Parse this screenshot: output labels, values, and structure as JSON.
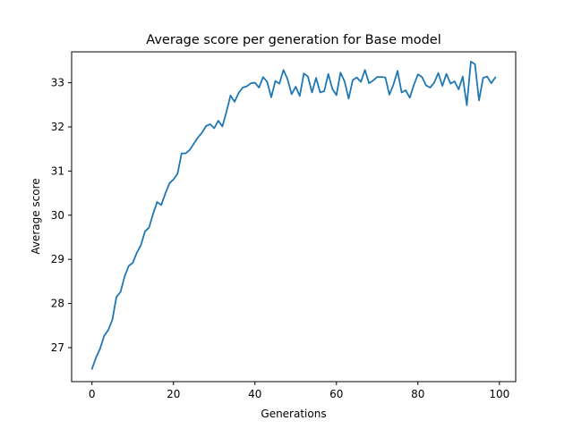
{
  "chart_data": {
    "type": "line",
    "title": "Average score per generation for Base model",
    "xlabel": "Generations",
    "ylabel": "Average score",
    "xlim": [
      -5,
      104
    ],
    "ylim": [
      26.23,
      33.7
    ],
    "xticks": [
      0,
      20,
      40,
      60,
      80,
      100
    ],
    "yticks": [
      27,
      28,
      29,
      30,
      31,
      32,
      33
    ],
    "grid": false,
    "line_color": "#1f77b4",
    "series": [
      {
        "x": [
          0,
          1,
          2,
          3,
          4,
          5,
          6,
          7,
          8,
          9,
          10,
          11,
          12,
          13,
          14,
          15,
          16,
          17,
          18,
          19,
          20,
          21,
          22,
          23,
          24,
          25,
          26,
          27,
          28,
          29,
          30,
          31,
          32,
          33,
          34,
          35,
          36,
          37,
          38,
          39,
          40,
          41,
          42,
          43,
          44,
          45,
          46,
          47,
          48,
          49,
          50,
          51,
          52,
          53,
          54,
          55,
          56,
          57,
          58,
          59,
          60,
          61,
          62,
          63,
          64,
          65,
          66,
          67,
          68,
          69,
          70,
          71,
          72,
          73,
          74,
          75,
          76,
          77,
          78,
          79,
          80,
          81,
          82,
          83,
          84,
          85,
          86,
          87,
          88,
          89,
          90,
          91,
          92,
          93,
          94,
          95,
          96,
          97,
          98,
          99
        ],
        "values": [
          26.52,
          26.78,
          26.98,
          27.27,
          27.4,
          27.63,
          28.15,
          28.26,
          28.61,
          28.85,
          28.92,
          29.15,
          29.32,
          29.63,
          29.72,
          30.03,
          30.3,
          30.23,
          30.49,
          30.72,
          30.81,
          30.94,
          31.4,
          31.4,
          31.48,
          31.62,
          31.76,
          31.87,
          32.02,
          32.06,
          31.97,
          32.14,
          32.01,
          32.34,
          32.71,
          32.57,
          32.77,
          32.89,
          32.92,
          32.99,
          33.0,
          32.89,
          33.13,
          33.02,
          32.67,
          33.04,
          32.98,
          33.29,
          33.08,
          32.74,
          32.91,
          32.7,
          33.21,
          33.14,
          32.78,
          33.11,
          32.78,
          32.81,
          33.2,
          32.86,
          32.72,
          33.23,
          33.03,
          32.64,
          33.06,
          33.12,
          33.02,
          33.29,
          32.99,
          33.05,
          33.13,
          33.13,
          33.12,
          32.73,
          32.96,
          33.27,
          32.78,
          32.83,
          32.66,
          32.95,
          33.19,
          33.13,
          32.94,
          32.89,
          33.0,
          33.22,
          32.93,
          33.2,
          32.98,
          33.03,
          32.85,
          33.14,
          32.49,
          33.48,
          33.42,
          32.6,
          33.11,
          33.14,
          32.99,
          33.12
        ]
      }
    ]
  }
}
